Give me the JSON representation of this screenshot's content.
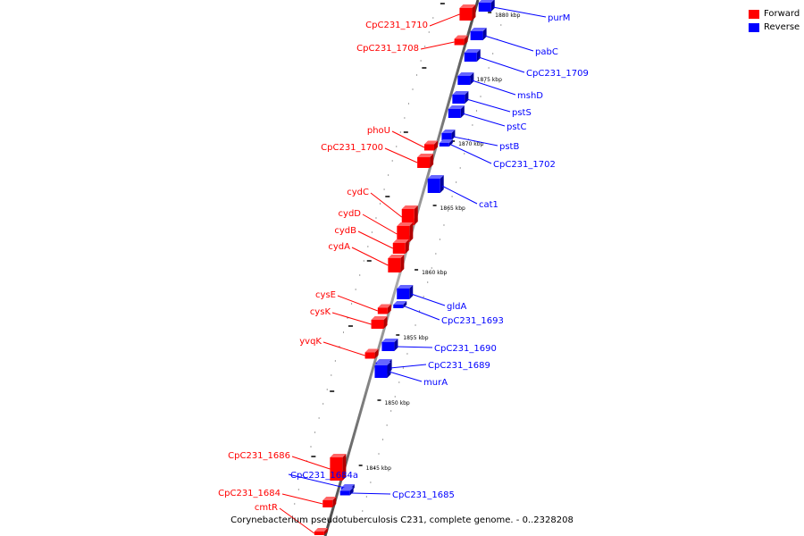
{
  "legend": {
    "forward": {
      "label": "Forward",
      "color": "#ff0000"
    },
    "reverse": {
      "label": "Reverse",
      "color": "#0000ff"
    }
  },
  "caption": "Corynebacterium pseudotuberculosis C231, complete genome. - 0..2328208",
  "scale_labels": [
    "1880 kbp",
    "1875 kbp",
    "1870 kbp",
    "1865 kbp",
    "1860 kbp",
    "1855 kbp",
    "1850 kbp",
    "1845 kbp"
  ],
  "genes": [
    {
      "name": "purM",
      "strand": "reverse"
    },
    {
      "name": "CpC231_1710",
      "strand": "forward"
    },
    {
      "name": "pabC",
      "strand": "reverse"
    },
    {
      "name": "CpC231_1708",
      "strand": "forward"
    },
    {
      "name": "CpC231_1709",
      "strand": "reverse"
    },
    {
      "name": "mshD",
      "strand": "reverse"
    },
    {
      "name": "pstS",
      "strand": "reverse"
    },
    {
      "name": "pstC",
      "strand": "reverse"
    },
    {
      "name": "phoU",
      "strand": "forward"
    },
    {
      "name": "pstB",
      "strand": "reverse"
    },
    {
      "name": "CpC231_1700",
      "strand": "forward"
    },
    {
      "name": "CpC231_1702",
      "strand": "reverse"
    },
    {
      "name": "cydC",
      "strand": "forward"
    },
    {
      "name": "cat1",
      "strand": "reverse"
    },
    {
      "name": "cydD",
      "strand": "forward"
    },
    {
      "name": "cydB",
      "strand": "forward"
    },
    {
      "name": "cydA",
      "strand": "forward"
    },
    {
      "name": "cysE",
      "strand": "forward"
    },
    {
      "name": "gldA",
      "strand": "reverse"
    },
    {
      "name": "cysK",
      "strand": "forward"
    },
    {
      "name": "CpC231_1693",
      "strand": "reverse"
    },
    {
      "name": "yvqK",
      "strand": "forward"
    },
    {
      "name": "CpC231_1690",
      "strand": "reverse"
    },
    {
      "name": "CpC231_1689",
      "strand": "reverse"
    },
    {
      "name": "murA",
      "strand": "reverse"
    },
    {
      "name": "CpC231_1686",
      "strand": "forward"
    },
    {
      "name": "CpC231_1684a",
      "strand": "reverse"
    },
    {
      "name": "CpC231_1685",
      "strand": "reverse"
    },
    {
      "name": "CpC231_1684",
      "strand": "forward"
    },
    {
      "name": "cmtR",
      "strand": "forward"
    }
  ]
}
